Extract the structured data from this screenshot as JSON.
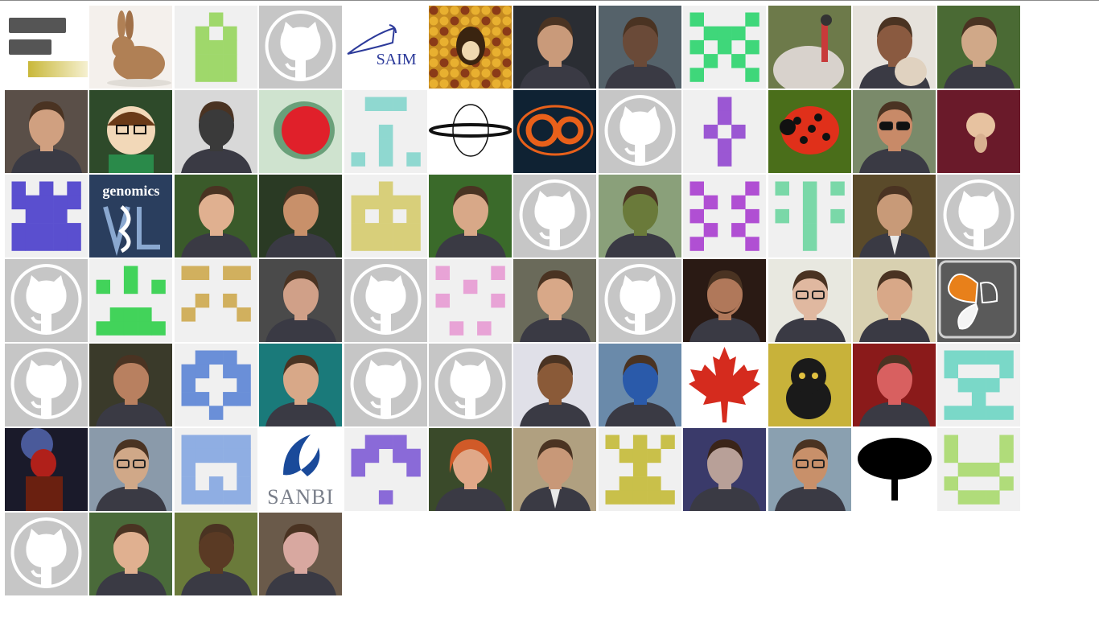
{
  "avatars": [
    {
      "kind": "bars",
      "c": "#c9b83a"
    },
    {
      "kind": "photo",
      "subject": "rabbit",
      "bg": "#f4f0ec",
      "c": "#b08055"
    },
    {
      "kind": "identicon",
      "c": "#9fd86b",
      "bg": "#f0f0f0",
      "p": [
        0,
        0,
        1,
        0,
        0,
        0,
        1,
        0,
        1,
        0,
        0,
        1,
        1,
        1,
        0,
        0,
        1,
        1,
        1,
        0,
        0,
        1,
        1,
        1,
        0
      ]
    },
    {
      "kind": "octocat"
    },
    {
      "kind": "logo",
      "subject": "saim",
      "text": "SAIM",
      "bg": "#ffffff",
      "c": "#2c3a9a"
    },
    {
      "kind": "photo",
      "subject": "cartoon-corn",
      "bg": "#c58a20",
      "c": "#3a2410"
    },
    {
      "kind": "photo",
      "subject": "person",
      "bg": "#2a2d33",
      "c": "#c99a7a"
    },
    {
      "kind": "photo",
      "subject": "person",
      "bg": "#55626a",
      "c": "#6a4a38"
    },
    {
      "kind": "identicon",
      "c": "#3fd77a",
      "bg": "#f0f0f0",
      "p": [
        1,
        0,
        0,
        0,
        1,
        0,
        1,
        1,
        1,
        0,
        1,
        0,
        1,
        0,
        1,
        0,
        1,
        0,
        1,
        0,
        1,
        0,
        0,
        0,
        1
      ]
    },
    {
      "kind": "photo",
      "subject": "turkey",
      "bg": "#6d7a4a",
      "c": "#d8d2cc"
    },
    {
      "kind": "photo",
      "subject": "person-dog",
      "bg": "#e6e2dc",
      "c": "#8a5a40"
    },
    {
      "kind": "photo",
      "subject": "person",
      "bg": "#4a6a34",
      "c": "#d0a888"
    },
    {
      "kind": "photo",
      "subject": "person",
      "bg": "#5a4f48",
      "c": "#d0a080"
    },
    {
      "kind": "photo",
      "subject": "cartoon",
      "bg": "#2e4a2a",
      "c": "#f2d24a"
    },
    {
      "kind": "photo",
      "subject": "person-bw",
      "bg": "#d8d8d8",
      "c": "#3a3a3a"
    },
    {
      "kind": "photo",
      "subject": "fly-eye",
      "bg": "#cfe3cf",
      "c": "#e0202a"
    },
    {
      "kind": "identicon",
      "c": "#8fd8d0",
      "bg": "#f0f0f0",
      "p": [
        0,
        1,
        1,
        1,
        0,
        0,
        0,
        0,
        0,
        0,
        0,
        0,
        1,
        0,
        0,
        0,
        0,
        1,
        0,
        0,
        1,
        0,
        1,
        0,
        1
      ]
    },
    {
      "kind": "logo",
      "subject": "planet",
      "bg": "#ffffff",
      "c": "#111111"
    },
    {
      "kind": "logo",
      "subject": "eo",
      "bg": "#0f2233",
      "c": "#e8601a"
    },
    {
      "kind": "octocat"
    },
    {
      "kind": "identicon",
      "c": "#9b57d3",
      "bg": "#f0f0f0",
      "p": [
        0,
        0,
        1,
        0,
        0,
        0,
        0,
        1,
        0,
        0,
        0,
        1,
        0,
        1,
        0,
        0,
        0,
        1,
        0,
        0,
        0,
        0,
        1,
        0,
        0
      ]
    },
    {
      "kind": "photo",
      "subject": "ladybug",
      "bg": "#4a6e1a",
      "c": "#e0301a"
    },
    {
      "kind": "photo",
      "subject": "person-sunglasses",
      "bg": "#7a8a6a",
      "c": "#c88a68"
    },
    {
      "kind": "photo",
      "subject": "orchid",
      "bg": "#6a1a2a",
      "c": "#e7c2a0"
    },
    {
      "kind": "identicon",
      "c": "#5a4fcf",
      "bg": "#f0f0f0",
      "p": [
        1,
        0,
        1,
        0,
        1,
        1,
        1,
        1,
        1,
        1,
        0,
        1,
        1,
        1,
        0,
        1,
        1,
        1,
        1,
        1,
        1,
        1,
        1,
        1,
        1
      ]
    },
    {
      "kind": "logo",
      "subject": "genomics",
      "text": "genomics",
      "bg": "#2a3e5e",
      "c": "#ffffff"
    },
    {
      "kind": "photo",
      "subject": "person",
      "bg": "#3a5a2a",
      "c": "#e0b090"
    },
    {
      "kind": "photo",
      "subject": "person",
      "bg": "#2a3a24",
      "c": "#c8906a"
    },
    {
      "kind": "identicon",
      "c": "#d8cf7a",
      "bg": "#f0f0f0",
      "p": [
        0,
        0,
        1,
        0,
        0,
        1,
        1,
        1,
        1,
        1,
        1,
        0,
        1,
        0,
        1,
        1,
        1,
        1,
        1,
        1,
        1,
        1,
        1,
        1,
        1
      ]
    },
    {
      "kind": "photo",
      "subject": "person",
      "bg": "#3a6a2a",
      "c": "#d8a888"
    },
    {
      "kind": "octocat"
    },
    {
      "kind": "photo",
      "subject": "person-outdoor",
      "bg": "#8aa07a",
      "c": "#6a7a3a"
    },
    {
      "kind": "identicon",
      "c": "#b04fd3",
      "bg": "#f0f0f0",
      "p": [
        1,
        0,
        0,
        0,
        1,
        0,
        1,
        0,
        1,
        0,
        1,
        0,
        0,
        0,
        1,
        0,
        1,
        0,
        1,
        0,
        1,
        0,
        0,
        0,
        1
      ]
    },
    {
      "kind": "identicon",
      "c": "#7ad8a8",
      "bg": "#f0f0f0",
      "p": [
        1,
        0,
        1,
        0,
        1,
        0,
        0,
        1,
        0,
        0,
        1,
        0,
        1,
        0,
        1,
        0,
        0,
        1,
        0,
        0,
        0,
        0,
        1,
        0,
        0
      ]
    },
    {
      "kind": "photo",
      "subject": "person-suit",
      "bg": "#5a4a2a",
      "c": "#c89a78"
    },
    {
      "kind": "octocat"
    },
    {
      "kind": "octocat"
    },
    {
      "kind": "identicon",
      "c": "#42d35a",
      "bg": "#f0f0f0",
      "p": [
        0,
        0,
        1,
        0,
        0,
        1,
        0,
        1,
        0,
        1,
        0,
        0,
        0,
        0,
        0,
        0,
        1,
        1,
        1,
        0,
        1,
        1,
        1,
        1,
        1
      ]
    },
    {
      "kind": "identicon",
      "c": "#d1b05e",
      "bg": "#f0f0f0",
      "p": [
        1,
        1,
        0,
        1,
        1,
        0,
        0,
        0,
        0,
        0,
        0,
        1,
        0,
        1,
        0,
        1,
        0,
        0,
        0,
        1,
        0,
        0,
        0,
        0,
        0
      ]
    },
    {
      "kind": "photo",
      "subject": "person",
      "bg": "#4a4a4a",
      "c": "#d0a088"
    },
    {
      "kind": "octocat"
    },
    {
      "kind": "identicon",
      "c": "#e8a3d6",
      "bg": "#f0f0f0",
      "p": [
        1,
        0,
        0,
        0,
        1,
        0,
        0,
        1,
        0,
        0,
        1,
        0,
        0,
        0,
        1,
        0,
        0,
        0,
        0,
        0,
        0,
        1,
        0,
        1,
        0
      ]
    },
    {
      "kind": "photo",
      "subject": "person",
      "bg": "#6a6a5a",
      "c": "#d8a888"
    },
    {
      "kind": "octocat"
    },
    {
      "kind": "photo",
      "subject": "person-beard",
      "bg": "#2a1a14",
      "c": "#b0785a"
    },
    {
      "kind": "photo",
      "subject": "person-glasses",
      "bg": "#e8e8e0",
      "c": "#e0b8a0"
    },
    {
      "kind": "photo",
      "subject": "person",
      "bg": "#d8d0b0",
      "c": "#d8a888"
    },
    {
      "kind": "logo",
      "subject": "butterfly",
      "bg": "#5a5a5a",
      "c": "#e8801a"
    },
    {
      "kind": "octocat"
    },
    {
      "kind": "photo",
      "subject": "person",
      "bg": "#3a3a2a",
      "c": "#b88060"
    },
    {
      "kind": "identicon",
      "c": "#6a8fd8",
      "bg": "#f0f0f0",
      "p": [
        0,
        1,
        1,
        1,
        0,
        1,
        1,
        0,
        1,
        1,
        1,
        0,
        0,
        0,
        1,
        1,
        1,
        0,
        1,
        1,
        0,
        0,
        1,
        0,
        0
      ]
    },
    {
      "kind": "photo",
      "subject": "person",
      "bg": "#1a7a7a",
      "c": "#d8a888"
    },
    {
      "kind": "octocat"
    },
    {
      "kind": "octocat"
    },
    {
      "kind": "photo",
      "subject": "person",
      "bg": "#e0e0e8",
      "c": "#8a5a38"
    },
    {
      "kind": "photo",
      "subject": "person-coast",
      "bg": "#6a8aaa",
      "c": "#2a5aaa"
    },
    {
      "kind": "logo",
      "subject": "maple-leaf",
      "bg": "#ffffff",
      "c": "#d52b1e"
    },
    {
      "kind": "photo",
      "subject": "lucky-cat",
      "bg": "#c8b23a",
      "c": "#1a1a1a"
    },
    {
      "kind": "photo",
      "subject": "person-red",
      "bg": "#8a1a1a",
      "c": "#d86060"
    },
    {
      "kind": "identicon",
      "c": "#7ad8c8",
      "bg": "#f0f0f0",
      "p": [
        1,
        1,
        1,
        1,
        1,
        1,
        0,
        0,
        0,
        1,
        0,
        1,
        1,
        1,
        0,
        0,
        0,
        1,
        0,
        0,
        1,
        1,
        1,
        1,
        1
      ]
    },
    {
      "kind": "photo",
      "subject": "hellboy",
      "bg": "#1a1a2a",
      "c": "#b0201a"
    },
    {
      "kind": "photo",
      "subject": "person-glasses",
      "bg": "#8a9aaa",
      "c": "#d0a888"
    },
    {
      "kind": "identicon",
      "c": "#8faee3",
      "bg": "#f0f0f0",
      "p": [
        1,
        1,
        1,
        1,
        1,
        1,
        1,
        1,
        1,
        1,
        1,
        0,
        0,
        0,
        1,
        1,
        0,
        1,
        0,
        1,
        1,
        1,
        1,
        1,
        1
      ]
    },
    {
      "kind": "logo",
      "subject": "sanbi",
      "text": "SANBI",
      "bg": "#ffffff",
      "c": "#1a4a9a"
    },
    {
      "kind": "identicon",
      "c": "#8a6ad8",
      "bg": "#f0f0f0",
      "p": [
        0,
        1,
        1,
        1,
        0,
        1,
        1,
        0,
        1,
        1,
        1,
        0,
        0,
        0,
        1,
        0,
        0,
        0,
        0,
        0,
        0,
        0,
        1,
        0,
        0
      ]
    },
    {
      "kind": "photo",
      "subject": "person-redhead",
      "bg": "#3a4a2a",
      "c": "#e0a888"
    },
    {
      "kind": "photo",
      "subject": "person-suit",
      "bg": "#b0a080",
      "c": "#c89878"
    },
    {
      "kind": "identicon",
      "c": "#c9c04a",
      "bg": "#f0f0f0",
      "p": [
        1,
        0,
        1,
        0,
        1,
        0,
        1,
        1,
        1,
        0,
        0,
        0,
        1,
        0,
        0,
        0,
        1,
        1,
        1,
        0,
        1,
        1,
        1,
        1,
        1
      ]
    },
    {
      "kind": "photo",
      "subject": "person-curly",
      "bg": "#3a3a6a",
      "c": "#b8a098"
    },
    {
      "kind": "photo",
      "subject": "person-glasses",
      "bg": "#8aa0b0",
      "c": "#c8906a"
    },
    {
      "kind": "logo",
      "subject": "tree",
      "bg": "#ffffff",
      "c": "#000000"
    },
    {
      "kind": "identicon",
      "c": "#b0dc7a",
      "bg": "#f0f0f0",
      "p": [
        1,
        0,
        0,
        0,
        1,
        1,
        0,
        0,
        0,
        1,
        0,
        1,
        1,
        1,
        0,
        1,
        0,
        0,
        0,
        1,
        0,
        1,
        1,
        1,
        0
      ]
    },
    {
      "kind": "octocat"
    },
    {
      "kind": "photo",
      "subject": "person",
      "bg": "#4a6a3a",
      "c": "#e0b090"
    },
    {
      "kind": "photo",
      "subject": "person",
      "bg": "#6a7a3a",
      "c": "#5a3a24"
    },
    {
      "kind": "photo",
      "subject": "person",
      "bg": "#6a5a4a",
      "c": "#d8a8a0"
    }
  ],
  "logo_text": {
    "saim": "SAIM",
    "genomics": "genomics",
    "sanbi": "SANBI"
  }
}
